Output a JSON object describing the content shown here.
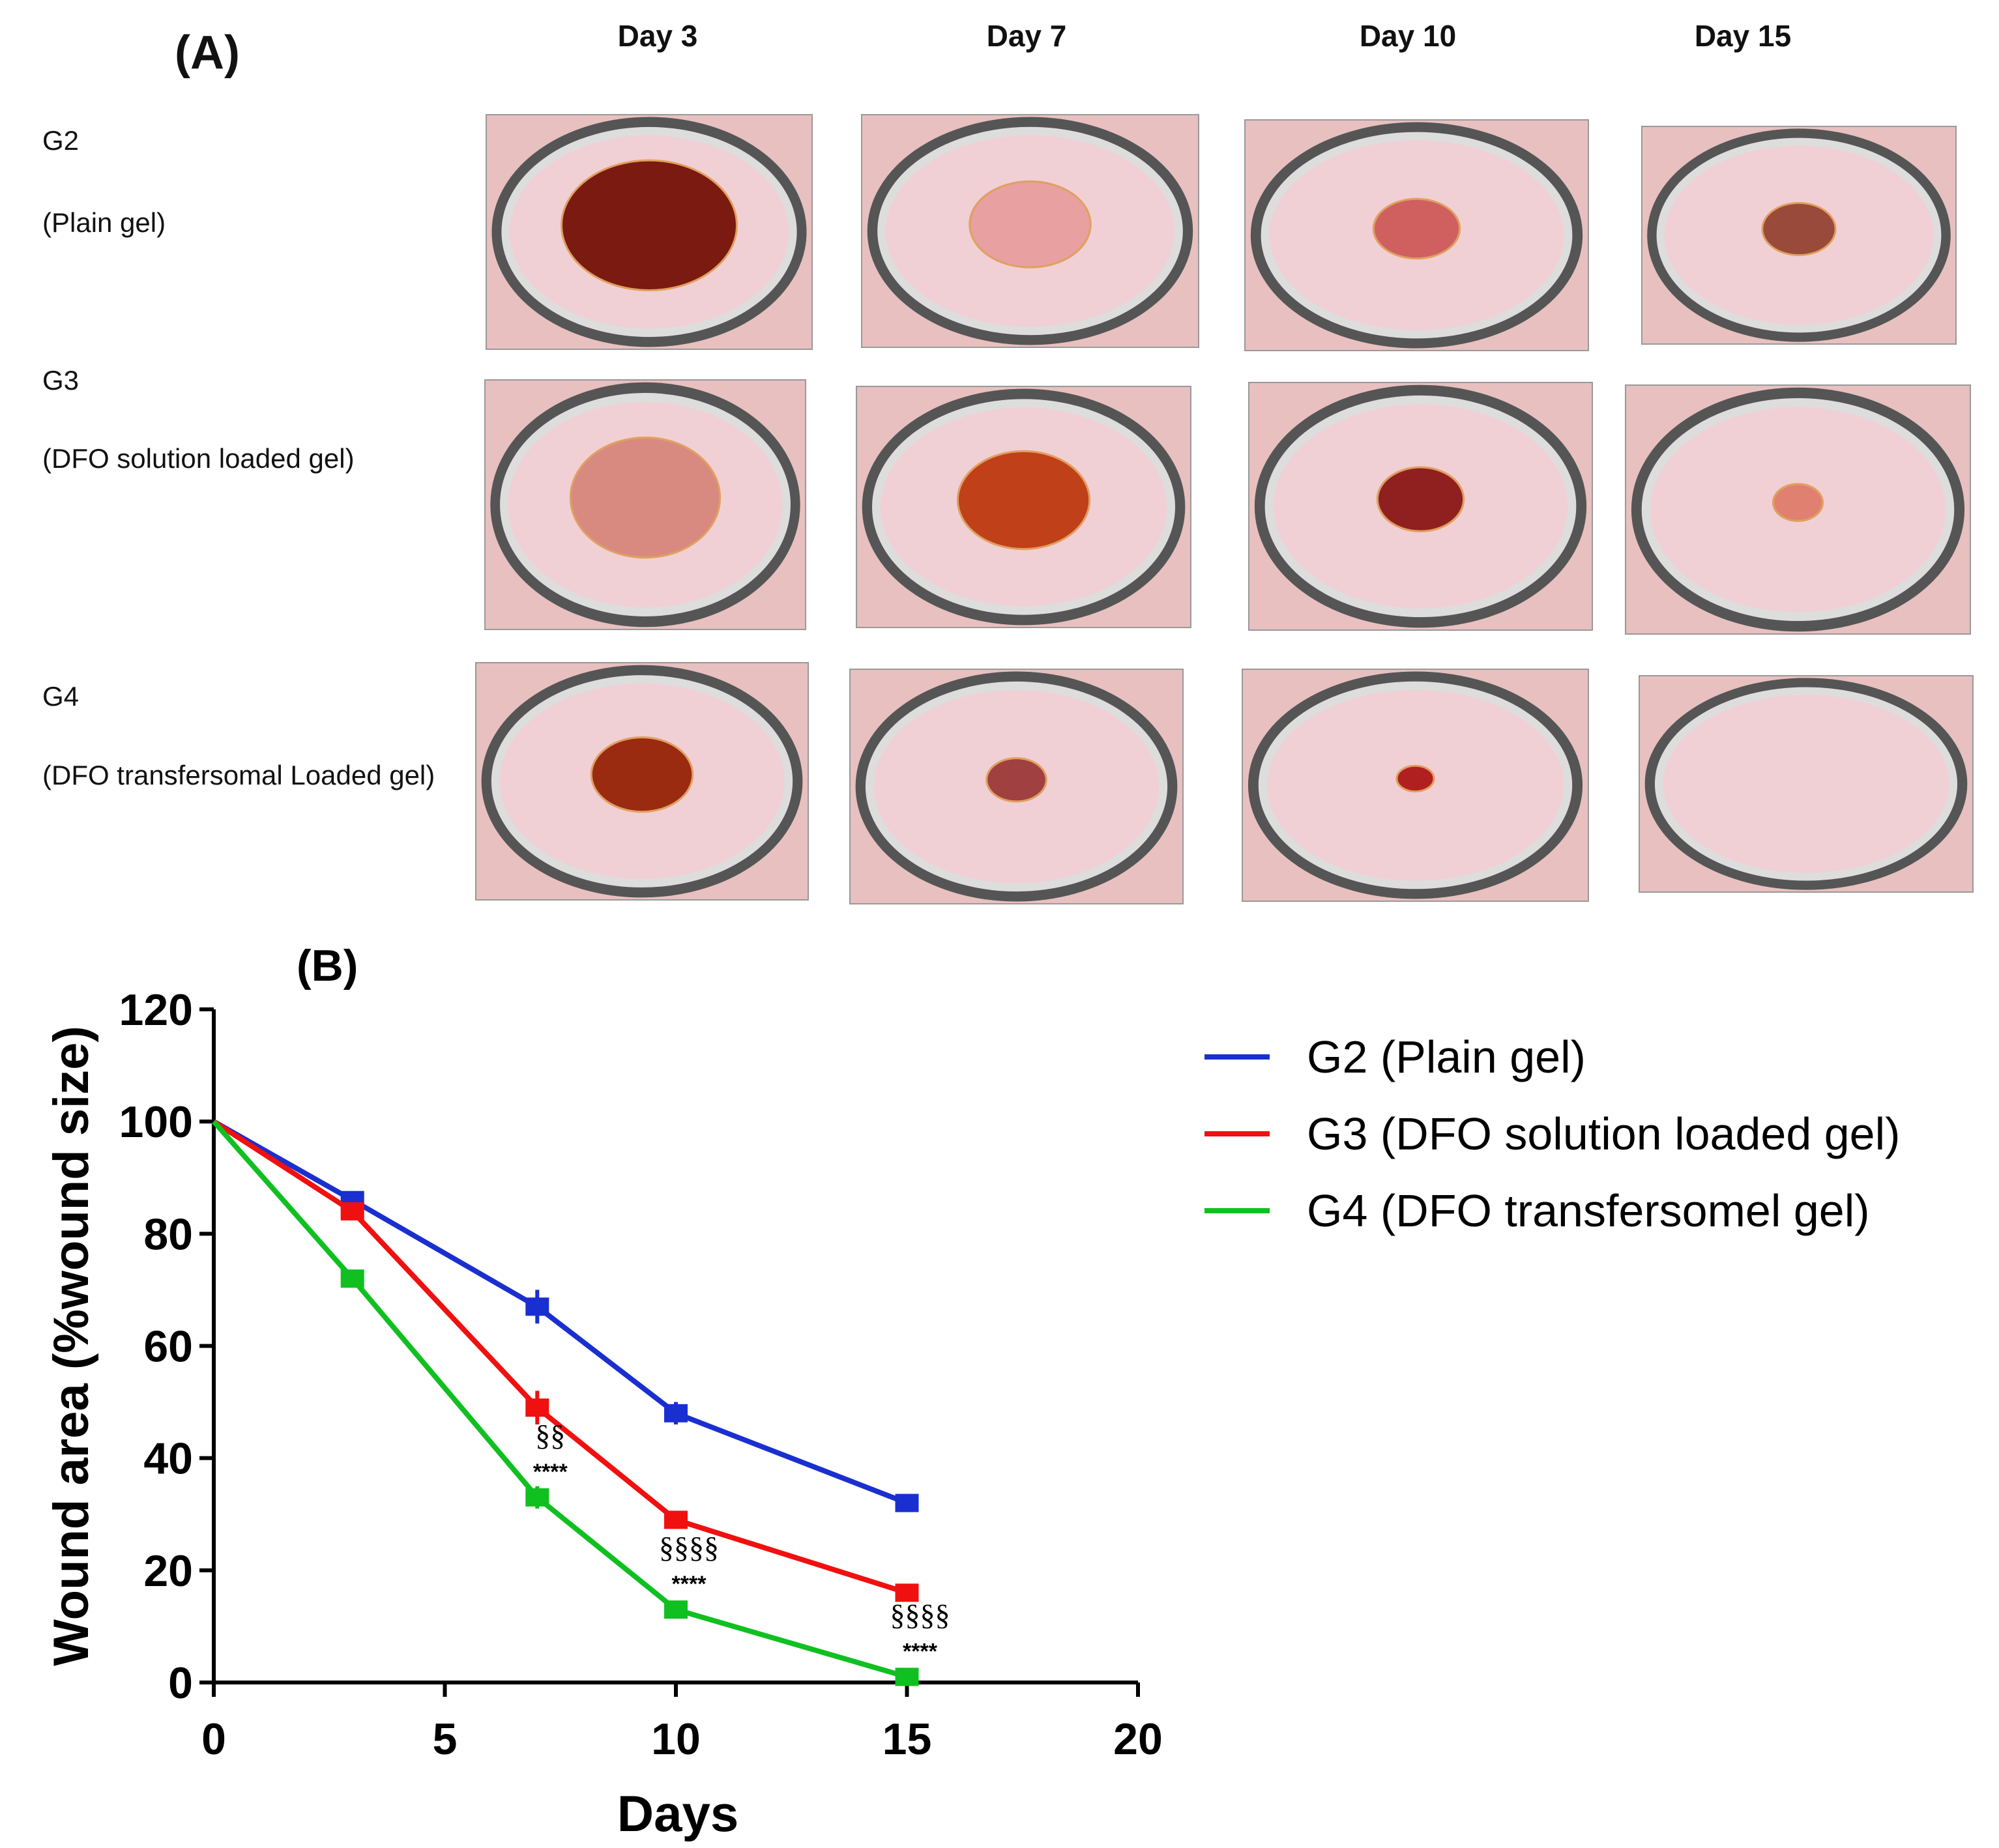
{
  "panel_a": {
    "label": "(A)",
    "days": [
      "Day 3",
      "Day 7",
      "Day 10",
      "Day 15"
    ],
    "groups": [
      {
        "id": "G2",
        "name": "(Plain gel)"
      },
      {
        "id": "G3",
        "name": "(DFO solution loaded gel)"
      },
      {
        "id": "G4",
        "name": "(DFO transfersomal Loaded gel)"
      }
    ]
  },
  "chart_data": {
    "type": "line",
    "panel_label": "(B)",
    "xlabel": "Days",
    "ylabel": "Wound area (%wound size)",
    "xlim": [
      0,
      20
    ],
    "ylim": [
      0,
      120
    ],
    "xticks": [
      0,
      5,
      10,
      15,
      20
    ],
    "yticks": [
      0,
      20,
      40,
      60,
      80,
      100,
      120
    ],
    "x": [
      0,
      3,
      7,
      10,
      15
    ],
    "series": [
      {
        "name": "G2 (Plain gel)",
        "color": "#1a2fd0",
        "values": [
          100,
          86,
          67,
          48,
          32
        ],
        "errors": [
          0,
          1.5,
          3,
          2,
          1
        ]
      },
      {
        "name": "G3 (DFO solution loaded gel)",
        "color": "#f01010",
        "values": [
          100,
          84,
          49,
          29,
          16
        ],
        "errors": [
          0,
          1,
          3,
          1.5,
          1
        ]
      },
      {
        "name": "G4 (DFO transfersomel gel)",
        "color": "#10c020",
        "values": [
          100,
          72,
          33,
          13,
          1
        ],
        "errors": [
          0,
          1.5,
          2,
          1.5,
          0.5
        ]
      }
    ],
    "annotations": [
      {
        "x": 7,
        "top": "§§",
        "bottom": "****"
      },
      {
        "x": 10,
        "top": "§§§§",
        "bottom": "****"
      },
      {
        "x": 15,
        "top": "§§§§",
        "bottom": "****"
      }
    ],
    "legend_position": "right"
  }
}
